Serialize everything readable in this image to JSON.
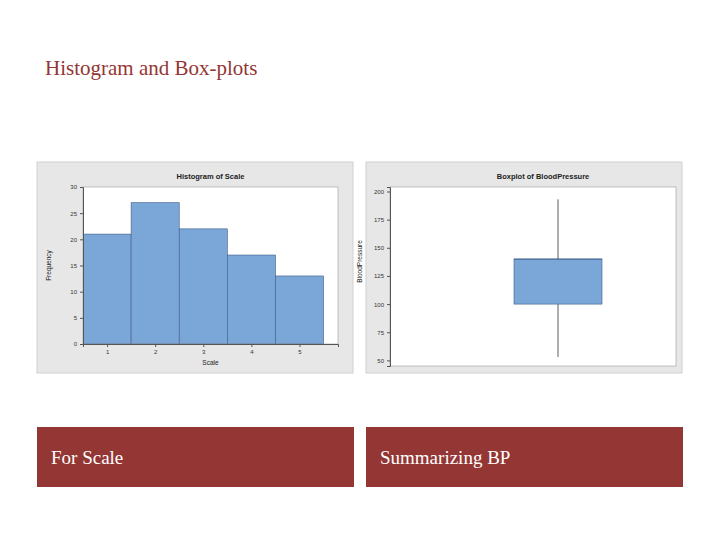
{
  "slide": {
    "title": "Histogram and Box-plots",
    "captions": [
      "For Scale",
      "Summarizing BP"
    ]
  },
  "chart_data": [
    {
      "type": "histogram",
      "title": "Histogram of Scale",
      "xlabel": "Scale",
      "ylabel": "Frequency",
      "bins": [
        0.5,
        1.5,
        2.5,
        3.5,
        4.5,
        5.5
      ],
      "values": [
        21,
        27,
        22,
        17,
        13
      ],
      "color": "#7ba7d8",
      "xlim": [
        0.5,
        5.8
      ],
      "xticks": [
        1,
        2,
        3,
        4,
        5
      ],
      "ylim": [
        0,
        30
      ],
      "yticks": [
        0,
        5,
        10,
        15,
        20,
        25,
        30
      ],
      "grid": false
    },
    {
      "type": "box",
      "title": "Boxplot of BloodPressure",
      "ylabel": "BloodPressure",
      "stats": {
        "min": 53,
        "q1": 100,
        "median": 140,
        "q3": 140,
        "max": 193
      },
      "color": "#7ba7d8",
      "ylim": [
        45,
        204
      ],
      "yticks": [
        50,
        75,
        100,
        125,
        150,
        175,
        200
      ],
      "grid": false,
      "tick_labels": "y"
    }
  ]
}
